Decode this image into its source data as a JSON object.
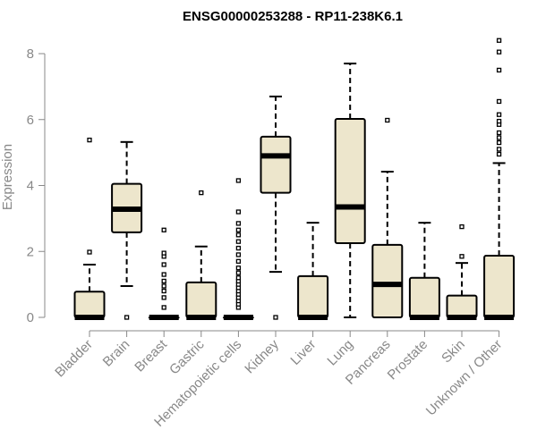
{
  "chart_data": {
    "type": "boxplot",
    "title": "ENSG00000253288 - RP11-238K6.1",
    "ylabel": "Expression",
    "xlabel": "",
    "ylim": [
      0,
      8.5
    ],
    "yticks": [
      0,
      2,
      4,
      6,
      8
    ],
    "box_color": "#ede6cc",
    "categories": [
      "Bladder",
      "Brain",
      "Breast",
      "Gastric",
      "Hematopoietic cells",
      "Kidney",
      "Liver",
      "Lung",
      "Pancreas",
      "Prostate",
      "Skin",
      "Unknown / Other"
    ],
    "boxes": [
      {
        "q1": 0,
        "median": 0,
        "q3": 0.78,
        "whisker_low": 0,
        "whisker_high": 1.6,
        "outliers": [
          1.98,
          5.38
        ]
      },
      {
        "q1": 2.58,
        "median": 3.28,
        "q3": 4.05,
        "whisker_low": 0.95,
        "whisker_high": 5.32,
        "outliers": [
          0
        ]
      },
      {
        "q1": 0,
        "median": 0,
        "q3": 0,
        "whisker_low": 0,
        "whisker_high": 0,
        "outliers": [
          0.3,
          0.6,
          0.8,
          0.95,
          1.1,
          1.3,
          1.6,
          1.85,
          1.95,
          2.65
        ]
      },
      {
        "q1": 0,
        "median": 0,
        "q3": 1.06,
        "whisker_low": 0,
        "whisker_high": 2.15,
        "outliers": [
          3.78
        ]
      },
      {
        "q1": 0,
        "median": 0,
        "q3": 0,
        "whisker_low": 0,
        "whisker_high": 0,
        "outliers": [
          0.3,
          0.4,
          0.5,
          0.6,
          0.7,
          0.8,
          0.9,
          1.0,
          1.1,
          1.2,
          1.35,
          1.5,
          1.7,
          1.9,
          2.1,
          2.3,
          2.5,
          2.65,
          2.85,
          3.2,
          4.15
        ]
      },
      {
        "q1": 3.78,
        "median": 4.9,
        "q3": 5.48,
        "whisker_low": 1.38,
        "whisker_high": 6.7,
        "outliers": [
          0
        ]
      },
      {
        "q1": 0,
        "median": 0,
        "q3": 1.25,
        "whisker_low": 0,
        "whisker_high": 2.87,
        "outliers": []
      },
      {
        "q1": 2.25,
        "median": 3.35,
        "q3": 6.02,
        "whisker_low": 0,
        "whisker_high": 7.7,
        "outliers": []
      },
      {
        "q1": 0,
        "median": 1.0,
        "q3": 2.2,
        "whisker_low": 0,
        "whisker_high": 4.42,
        "outliers": [
          5.98
        ]
      },
      {
        "q1": 0,
        "median": 0,
        "q3": 1.2,
        "whisker_low": 0,
        "whisker_high": 2.87,
        "outliers": []
      },
      {
        "q1": 0,
        "median": 0,
        "q3": 0.66,
        "whisker_low": 0,
        "whisker_high": 1.65,
        "outliers": [
          1.85,
          2.75
        ]
      },
      {
        "q1": 0,
        "median": 0,
        "q3": 1.87,
        "whisker_low": 0,
        "whisker_high": 4.68,
        "outliers": [
          4.95,
          5.1,
          5.3,
          5.45,
          5.6,
          5.85,
          5.95,
          6.15,
          6.55,
          7.5,
          8.05,
          8.4
        ]
      }
    ]
  }
}
